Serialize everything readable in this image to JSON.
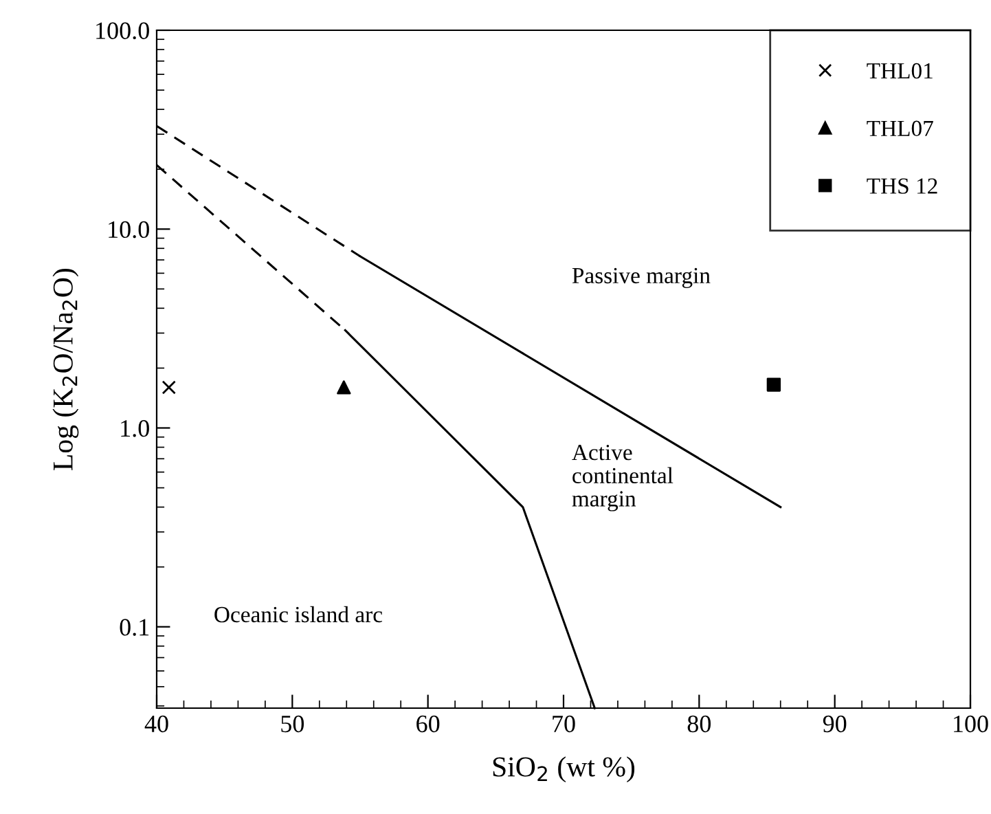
{
  "chart_data": {
    "type": "scatter",
    "xlabel": "SiO$_{2}$ (wt %)",
    "ylabel": "Log (K$_{2}$O/Na$_{2}$O)",
    "log": "y",
    "legend": "top right",
    "grid": false,
    "xlim": [
      40,
      100
    ],
    "xticks": [
      40,
      50,
      60,
      70,
      80,
      90,
      100
    ],
    "ylim": [
      0.039,
      100
    ],
    "yticks": [
      {
        "value": 0.1,
        "label": "0.1"
      },
      {
        "value": 1,
        "label": "1.0"
      },
      {
        "value": 10,
        "label": "10.0"
      },
      {
        "value": 100,
        "label": "100.0"
      }
    ],
    "series": [
      {
        "type": "line",
        "line_style": "dashed",
        "color": "#000000",
        "x": [
          40,
          55
        ],
        "values": [
          33,
          7.3
        ]
      },
      {
        "type": "line",
        "line_style": "solid",
        "color": "#000000",
        "x": [
          55,
          86
        ],
        "values": [
          7.3,
          0.4
        ]
      },
      {
        "type": "line",
        "line_style": "dashed",
        "color": "#000000",
        "x": [
          40,
          53.9
        ],
        "values": [
          21,
          3.1
        ]
      },
      {
        "type": "line",
        "line_style": "solid",
        "color": "#000000",
        "x": [
          53.9,
          67,
          72.3
        ],
        "values": [
          3.1,
          0.4,
          0.039
        ]
      },
      {
        "name": "THL01",
        "marker": "cross",
        "color": "#000000",
        "x": [
          40.9
        ],
        "values": [
          1.6
        ]
      },
      {
        "name": "THL07",
        "marker": "triangle",
        "color": "#000000",
        "x": [
          53.8
        ],
        "values": [
          1.6
        ]
      },
      {
        "name": "THS 12",
        "marker": "square",
        "color": "#000000",
        "x": [
          85.5
        ],
        "values": [
          1.65
        ]
      }
    ],
    "annotations": [
      "Passive margin",
      "Active\ncontinental\nmargin",
      "Oceanic island arc"
    ]
  }
}
